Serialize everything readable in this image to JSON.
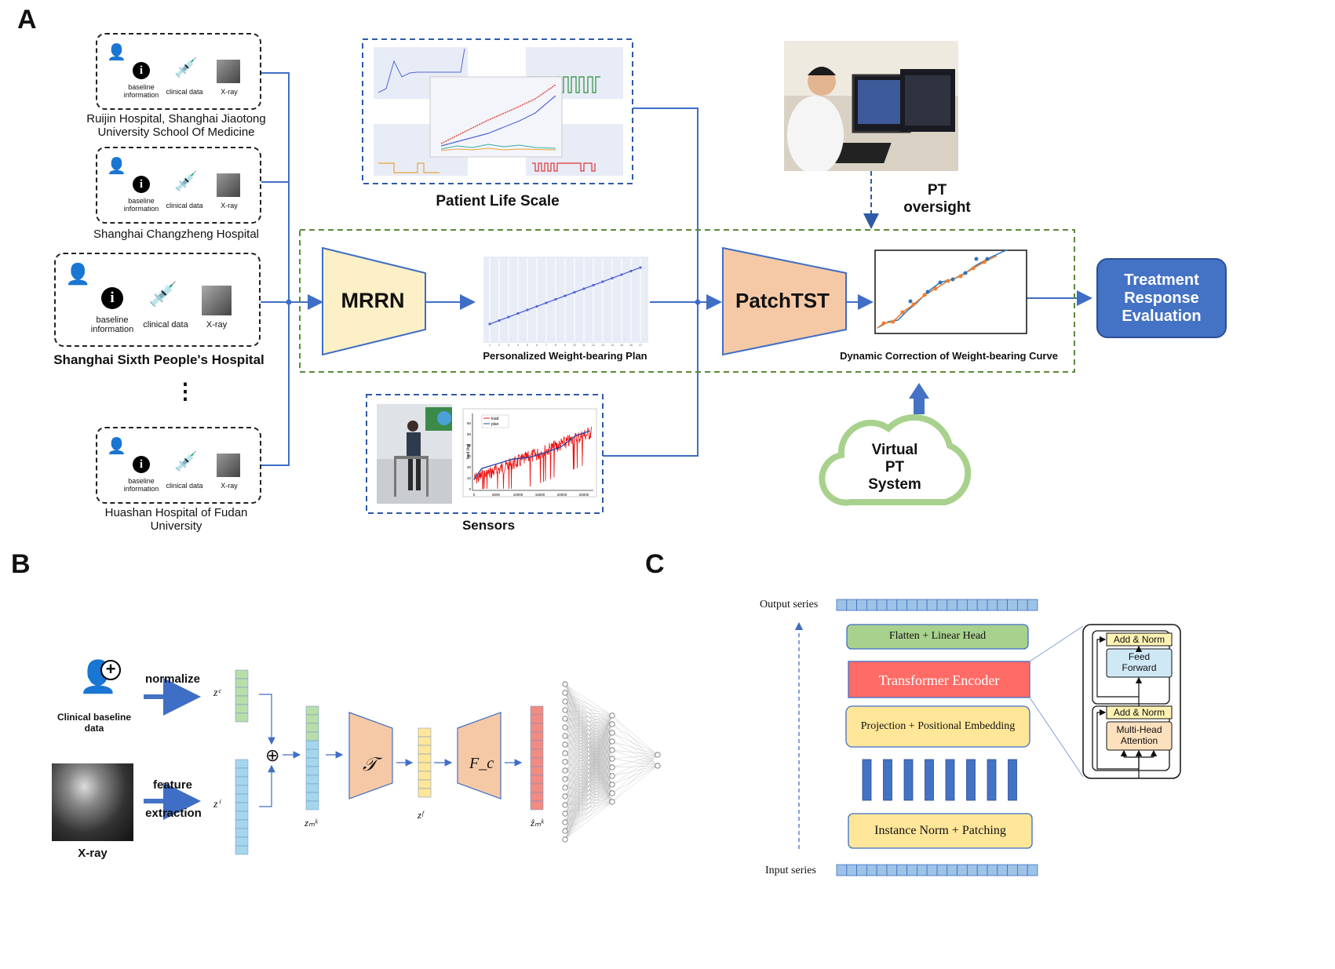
{
  "panels": {
    "a": "A",
    "b": "B",
    "c": "C"
  },
  "panel_a": {
    "hospitals": [
      {
        "label": "Ruijin Hospital, Shanghai Jiaotong University School Of Medicine",
        "line1": "Ruijin Hospital, Shanghai Jiaotong",
        "line2": "University School Of Medicine"
      },
      {
        "label": "Shanghai Changzheng Hospital"
      },
      {
        "label": "Shanghai Sixth People's Hospital"
      },
      {
        "label": "Huashan Hospital of Fudan University"
      }
    ],
    "icons": {
      "baseline_1": "baseline",
      "baseline_2": "information",
      "clinical": "clinical data",
      "xray": "X-ray"
    },
    "ellipsis": "⋮",
    "patient_life_scale": "Patient Life Scale",
    "pt_oversight_1": "PT",
    "pt_oversight_2": "oversight",
    "mrrn": "MRRN",
    "patchtst": "PatchTST",
    "weight_plan": "Personalized Weight-bearing Plan",
    "dynamic_correction": "Dynamic Correction of Weight-bearing Curve",
    "treatment_1": "Treatment",
    "treatment_2": "Response",
    "treatment_3": "Evaluation",
    "sensors": "Sensors",
    "virtual_1": "Virtual",
    "virtual_2": "PT",
    "virtual_3": "System",
    "sensor_legend": [
      "load",
      "plan"
    ],
    "sensor_ylabel": "load (kg)",
    "sensor_xticks": [
      "0",
      "5000",
      "10000",
      "15000",
      "20000",
      "25000"
    ],
    "sensor_yticks": [
      "0",
      "10",
      "20",
      "30",
      "40",
      "50",
      "60"
    ],
    "plan_xticks": [
      "1",
      "2",
      "3",
      "4",
      "5",
      "6",
      "7",
      "8",
      "9",
      "10",
      "11",
      "12",
      "13",
      "14",
      "15",
      "16",
      "17"
    ]
  },
  "panel_b": {
    "clinical_baseline": "Clinical baseline data",
    "normalize": "normalize",
    "feature_1": "feature",
    "feature_2": "extraction",
    "xray": "X-ray",
    "zc": "zᶜ",
    "zi": "zⁱ",
    "zmk": "zₘᵏ",
    "zf": "zᶠ",
    "zmk_hat": "ẑₘᵏ",
    "oplus": "⊕",
    "T": "𝒯",
    "Fc": "F_c"
  },
  "panel_c": {
    "output_series": "Output series",
    "input_series": "Input series",
    "flatten": "Flatten + Linear Head",
    "transformer": "Transformer Encoder",
    "projection": "Projection + Positional Embedding",
    "instance_norm": "Instance Norm + Patching",
    "add_norm_1": "Add & Norm",
    "feed_forward_1": "Feed",
    "feed_forward_2": "Forward",
    "add_norm_2": "Add & Norm",
    "mha_1": "Multi-Head",
    "mha_2": "Attention"
  },
  "colors": {
    "blue_arrow": "#3f6ec6",
    "mrrn_fill": "#fdf0c6",
    "patch_fill": "#f6c9a6",
    "treat_fill": "#4472c4",
    "green_dash": "#5b8a3a",
    "blue_dash": "#2e5aa8",
    "cloud": "#a9d18e",
    "flatten_fill": "#a9d18e",
    "transformer_fill": "#ff6b66",
    "proj_fill": "#ffe699",
    "patch_bar": "#4472c4",
    "series_fill": "#9dc3e6"
  }
}
